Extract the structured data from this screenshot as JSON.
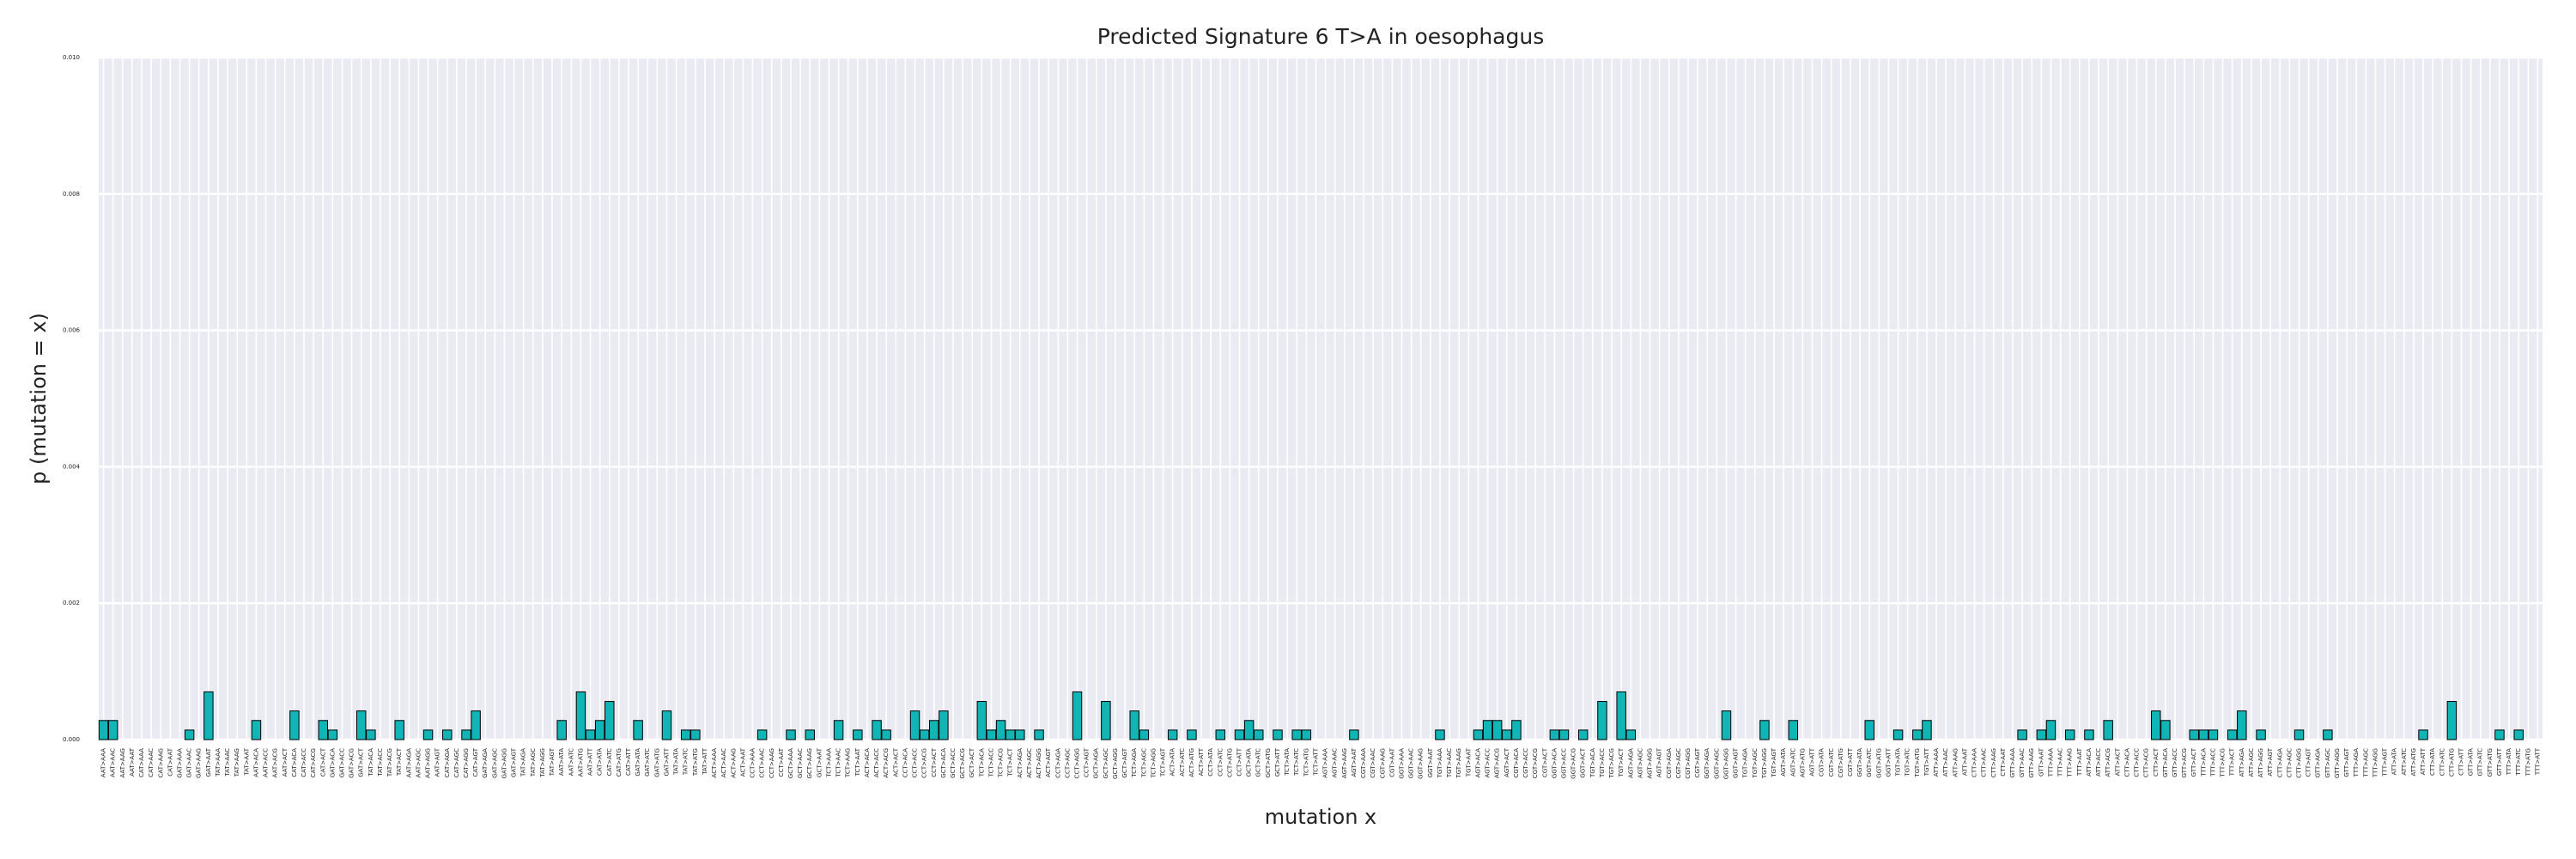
{
  "chart_data": {
    "type": "bar",
    "title": "Predicted Signature 6 T>A in oesophagus",
    "xlabel": "mutation x",
    "ylabel": "p (mutation = x)",
    "color": "#12b5b5",
    "edgecolor": "#000000",
    "grid": true,
    "ylim": [
      0,
      0.01
    ],
    "yticks": [
      {
        "value": 0,
        "label": "0.000"
      },
      {
        "value": 0.002,
        "label": "0.002"
      },
      {
        "value": 0.004,
        "label": "0.004"
      },
      {
        "value": 0.006,
        "label": "0.006"
      },
      {
        "value": 0.008,
        "label": "0.008"
      },
      {
        "value": 0.01,
        "label": "0.010"
      }
    ],
    "categories": [
      "AAT>AAA",
      "AAT>AAC",
      "AAT>AAG",
      "AAT>AAT",
      "CAT>AAA",
      "CAT>AAC",
      "CAT>AAG",
      "CAT>AAT",
      "GAT>AAA",
      "GAT>AAC",
      "GAT>AAG",
      "GAT>AAT",
      "TAT>AAA",
      "TAT>AAC",
      "TAT>AAG",
      "TAT>AAT",
      "AAT>ACA",
      "AAT>ACC",
      "AAT>ACG",
      "AAT>ACT",
      "CAT>ACA",
      "CAT>ACC",
      "CAT>ACG",
      "CAT>ACT",
      "GAT>ACA",
      "GAT>ACC",
      "GAT>ACG",
      "GAT>ACT",
      "TAT>ACA",
      "TAT>ACC",
      "TAT>ACG",
      "TAT>ACT",
      "AAT>AGA",
      "AAT>AGC",
      "AAT>AGG",
      "AAT>AGT",
      "CAT>AGA",
      "CAT>AGC",
      "CAT>AGG",
      "CAT>AGT",
      "GAT>AGA",
      "GAT>AGC",
      "GAT>AGG",
      "GAT>AGT",
      "TAT>AGA",
      "TAT>AGC",
      "TAT>AGG",
      "TAT>AGT",
      "AAT>ATA",
      "AAT>ATC",
      "AAT>ATG",
      "AAT>ATT",
      "CAT>ATA",
      "CAT>ATC",
      "CAT>ATG",
      "CAT>ATT",
      "GAT>ATA",
      "GAT>ATC",
      "GAT>ATG",
      "GAT>ATT",
      "TAT>ATA",
      "TAT>ATC",
      "TAT>ATG",
      "TAT>ATT",
      "ACT>AAA",
      "ACT>AAC",
      "ACT>AAG",
      "ACT>AAT",
      "CCT>AAA",
      "CCT>AAC",
      "CCT>AAG",
      "CCT>AAT",
      "GCT>AAA",
      "GCT>AAC",
      "GCT>AAG",
      "GCT>AAT",
      "TCT>AAA",
      "TCT>AAC",
      "TCT>AAG",
      "TCT>AAT",
      "ACT>ACA",
      "ACT>ACC",
      "ACT>ACG",
      "ACT>ACT",
      "CCT>ACA",
      "CCT>ACC",
      "CCT>ACG",
      "CCT>ACT",
      "GCT>ACA",
      "GCT>ACC",
      "GCT>ACG",
      "GCT>ACT",
      "TCT>ACA",
      "TCT>ACC",
      "TCT>ACG",
      "TCT>ACT",
      "ACT>AGA",
      "ACT>AGC",
      "ACT>AGG",
      "ACT>AGT",
      "CCT>AGA",
      "CCT>AGC",
      "CCT>AGG",
      "CCT>AGT",
      "GCT>AGA",
      "GCT>AGC",
      "GCT>AGG",
      "GCT>AGT",
      "TCT>AGA",
      "TCT>AGC",
      "TCT>AGG",
      "TCT>AGT",
      "ACT>ATA",
      "ACT>ATC",
      "ACT>ATG",
      "ACT>ATT",
      "CCT>ATA",
      "CCT>ATC",
      "CCT>ATG",
      "CCT>ATT",
      "GCT>ATA",
      "GCT>ATC",
      "GCT>ATG",
      "GCT>ATT",
      "TCT>ATA",
      "TCT>ATC",
      "TCT>ATG",
      "TCT>ATT",
      "AGT>AAA",
      "AGT>AAC",
      "AGT>AAG",
      "AGT>AAT",
      "CGT>AAA",
      "CGT>AAC",
      "CGT>AAG",
      "CGT>AAT",
      "GGT>AAA",
      "GGT>AAC",
      "GGT>AAG",
      "GGT>AAT",
      "TGT>AAA",
      "TGT>AAC",
      "TGT>AAG",
      "TGT>AAT",
      "AGT>ACA",
      "AGT>ACC",
      "AGT>ACG",
      "AGT>ACT",
      "CGT>ACA",
      "CGT>ACC",
      "CGT>ACG",
      "CGT>ACT",
      "GGT>ACA",
      "GGT>ACC",
      "GGT>ACG",
      "GGT>ACT",
      "TGT>ACA",
      "TGT>ACC",
      "TGT>ACG",
      "TGT>ACT",
      "AGT>AGA",
      "AGT>AGC",
      "AGT>AGG",
      "AGT>AGT",
      "CGT>AGA",
      "CGT>AGC",
      "CGT>AGG",
      "CGT>AGT",
      "GGT>AGA",
      "GGT>AGC",
      "GGT>AGG",
      "GGT>AGT",
      "TGT>AGA",
      "TGT>AGC",
      "TGT>AGG",
      "TGT>AGT",
      "AGT>ATA",
      "AGT>ATC",
      "AGT>ATG",
      "AGT>ATT",
      "CGT>ATA",
      "CGT>ATC",
      "CGT>ATG",
      "CGT>ATT",
      "GGT>ATA",
      "GGT>ATC",
      "GGT>ATG",
      "GGT>ATT",
      "TGT>ATA",
      "TGT>ATC",
      "TGT>ATG",
      "TGT>ATT",
      "ATT>AAA",
      "ATT>AAC",
      "ATT>AAG",
      "ATT>AAT",
      "CTT>AAA",
      "CTT>AAC",
      "CTT>AAG",
      "CTT>AAT",
      "GTT>AAA",
      "GTT>AAC",
      "GTT>AAG",
      "GTT>AAT",
      "TTT>AAA",
      "TTT>AAC",
      "TTT>AAG",
      "TTT>AAT",
      "ATT>ACA",
      "ATT>ACC",
      "ATT>ACG",
      "ATT>ACT",
      "CTT>ACA",
      "CTT>ACC",
      "CTT>ACG",
      "CTT>ACT",
      "GTT>ACA",
      "GTT>ACC",
      "GTT>ACG",
      "GTT>ACT",
      "TTT>ACA",
      "TTT>ACC",
      "TTT>ACG",
      "TTT>ACT",
      "ATT>AGA",
      "ATT>AGC",
      "ATT>AGG",
      "ATT>AGT",
      "CTT>AGA",
      "CTT>AGC",
      "CTT>AGG",
      "CTT>AGT",
      "GTT>AGA",
      "GTT>AGC",
      "GTT>AGG",
      "GTT>AGT",
      "TTT>AGA",
      "TTT>AGC",
      "TTT>AGG",
      "TTT>AGT",
      "ATT>ATA",
      "ATT>ATC",
      "ATT>ATG",
      "ATT>ATT",
      "CTT>ATA",
      "CTT>ATC",
      "CTT>ATG",
      "CTT>ATT",
      "GTT>ATA",
      "GTT>ATC",
      "GTT>ATG",
      "GTT>ATT",
      "TTT>ATA",
      "TTT>ATC",
      "TTT>ATG",
      "TTT>ATT"
    ],
    "values": [
      0.00028,
      0.00028,
      0,
      0,
      0,
      0,
      0,
      0,
      0,
      0.00014,
      0,
      0.0007,
      0,
      0,
      0,
      0,
      0.00028,
      0,
      0,
      0,
      0.00042,
      0,
      0,
      0.00028,
      0.00014,
      0,
      0,
      0.00042,
      0.00014,
      0,
      0,
      0.00028,
      0,
      0,
      0.00014,
      0,
      0.00014,
      0,
      0.00014,
      0.00042,
      0,
      0,
      0,
      0,
      0,
      0,
      0,
      0,
      0.00028,
      0,
      0.0007,
      0.00014,
      0.00028,
      0.00056,
      0,
      0,
      0.00028,
      0,
      0,
      0.00042,
      0,
      0.00014,
      0.00014,
      0,
      0,
      0,
      0,
      0,
      0,
      0.00014,
      0,
      0,
      0.00014,
      0,
      0.00014,
      0,
      0,
      0.00028,
      0,
      0.00014,
      0,
      0.00028,
      0.00014,
      0,
      0,
      0.00042,
      0.00014,
      0.00028,
      0.00042,
      0,
      0,
      0,
      0.00056,
      0.00014,
      0.00028,
      0.00014,
      0.00014,
      0,
      0.00014,
      0,
      0,
      0,
      0.0007,
      0,
      0,
      0.00056,
      0,
      0,
      0.00042,
      0.00014,
      0,
      0,
      0.00014,
      0,
      0.00014,
      0,
      0,
      0.00014,
      0,
      0.00014,
      0.00028,
      0.00014,
      0,
      0.00014,
      0,
      0.00014,
      0.00014,
      0,
      0,
      0,
      0,
      0.00014,
      0,
      0,
      0,
      0,
      0,
      0,
      0,
      0,
      0.00014,
      0,
      0,
      0,
      0.00014,
      0.00028,
      0.00028,
      0.00014,
      0.00028,
      0,
      0,
      0,
      0.00014,
      0.00014,
      0,
      0.00014,
      0,
      0.00056,
      0,
      0.0007,
      0.00014,
      0,
      0,
      0,
      0,
      0,
      0,
      0,
      0,
      0,
      0.00042,
      0,
      0,
      0,
      0.00028,
      0,
      0,
      0.00028,
      0,
      0,
      0,
      0,
      0,
      0,
      0,
      0.00028,
      0,
      0,
      0.00014,
      0,
      0.00014,
      0.00028,
      0,
      0,
      0,
      0,
      0,
      0,
      0,
      0,
      0,
      0.00014,
      0,
      0.00014,
      0.00028,
      0,
      0.00014,
      0,
      0.00014,
      0,
      0.00028,
      0,
      0,
      0,
      0,
      0.00042,
      0.00028,
      0,
      0,
      0.00014,
      0.00014,
      0.00014,
      0,
      0.00014,
      0.00042,
      0,
      0.00014,
      0,
      0,
      0,
      0.00014,
      0,
      0,
      0.00014,
      0,
      0,
      0,
      0,
      0,
      0,
      0,
      0,
      0,
      0.00014,
      0,
      0,
      0.00056,
      0,
      0,
      0,
      0,
      0.00014,
      0,
      0.00014,
      0,
      0
    ]
  }
}
